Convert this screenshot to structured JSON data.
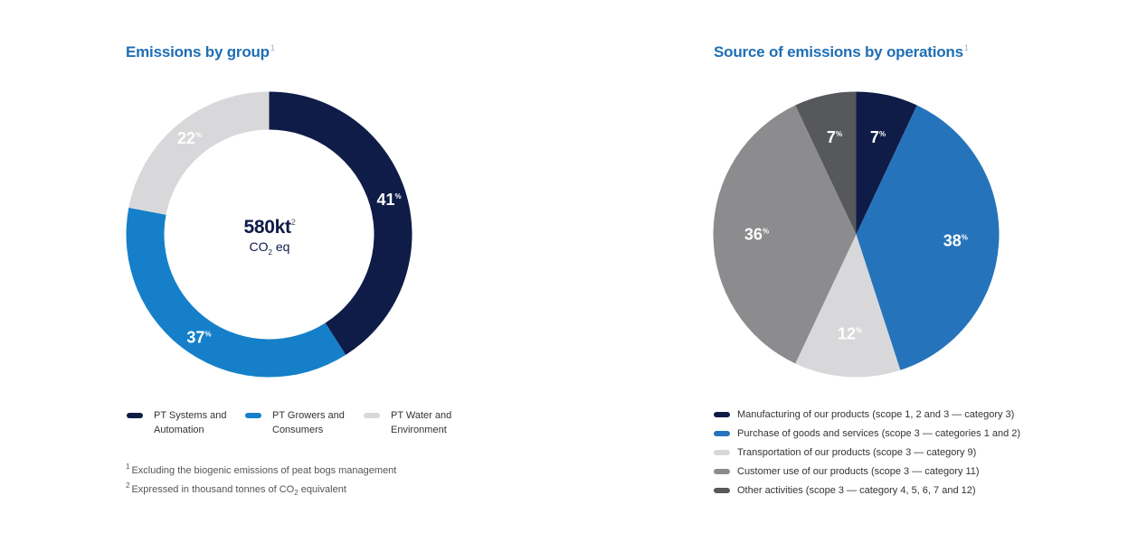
{
  "chart_data": [
    {
      "type": "donut",
      "title": "Emissions by group",
      "title_note": "1",
      "center": {
        "value": "580kt",
        "value_note": "2",
        "unit_main": "CO",
        "unit_sub": "2",
        "unit_rest": " eq"
      },
      "series": [
        {
          "name": "PT Systems and Automation",
          "value": 41,
          "label": "41",
          "color": "#0f1c48"
        },
        {
          "name": "PT Growers and Consumers",
          "value": 37,
          "label": "37",
          "color": "#1580c9"
        },
        {
          "name": "PT Water and Environment",
          "value": 22,
          "label": "22",
          "color": "#d8d8da"
        }
      ],
      "percent_sign": "%",
      "footnotes": [
        {
          "num": "1",
          "text": "Excluding the biogenic emissions of peat bogs management"
        },
        {
          "num": "2",
          "text_before": "Expressed in thousand tonnes of CO",
          "text_sub": "2",
          "text_after": " equivalent"
        }
      ]
    },
    {
      "type": "pie",
      "title": "Source of emissions by operations",
      "title_note": "1",
      "series": [
        {
          "name": "Manufacturing of our products (scope 1, 2 and 3 — category 3)",
          "value": 7,
          "label": "7",
          "color": "#0f1c48"
        },
        {
          "name": "Purchase of goods and services (scope 3 — categories 1 and 2)",
          "value": 38,
          "label": "38",
          "color": "#2574bb"
        },
        {
          "name": "Transportation of our products (scope 3 — category 9)",
          "value": 12,
          "label": "12",
          "color": "#d8d8da"
        },
        {
          "name": "Customer use of our products (scope 3 — category 11)",
          "value": 36,
          "label": "36",
          "color": "#8c8c8e"
        },
        {
          "name": "Other activities (scope 3 — category 4, 5, 6, 7 and 12)",
          "value": 7,
          "label": "7",
          "color": "#57585b"
        }
      ],
      "percent_sign": "%"
    }
  ]
}
